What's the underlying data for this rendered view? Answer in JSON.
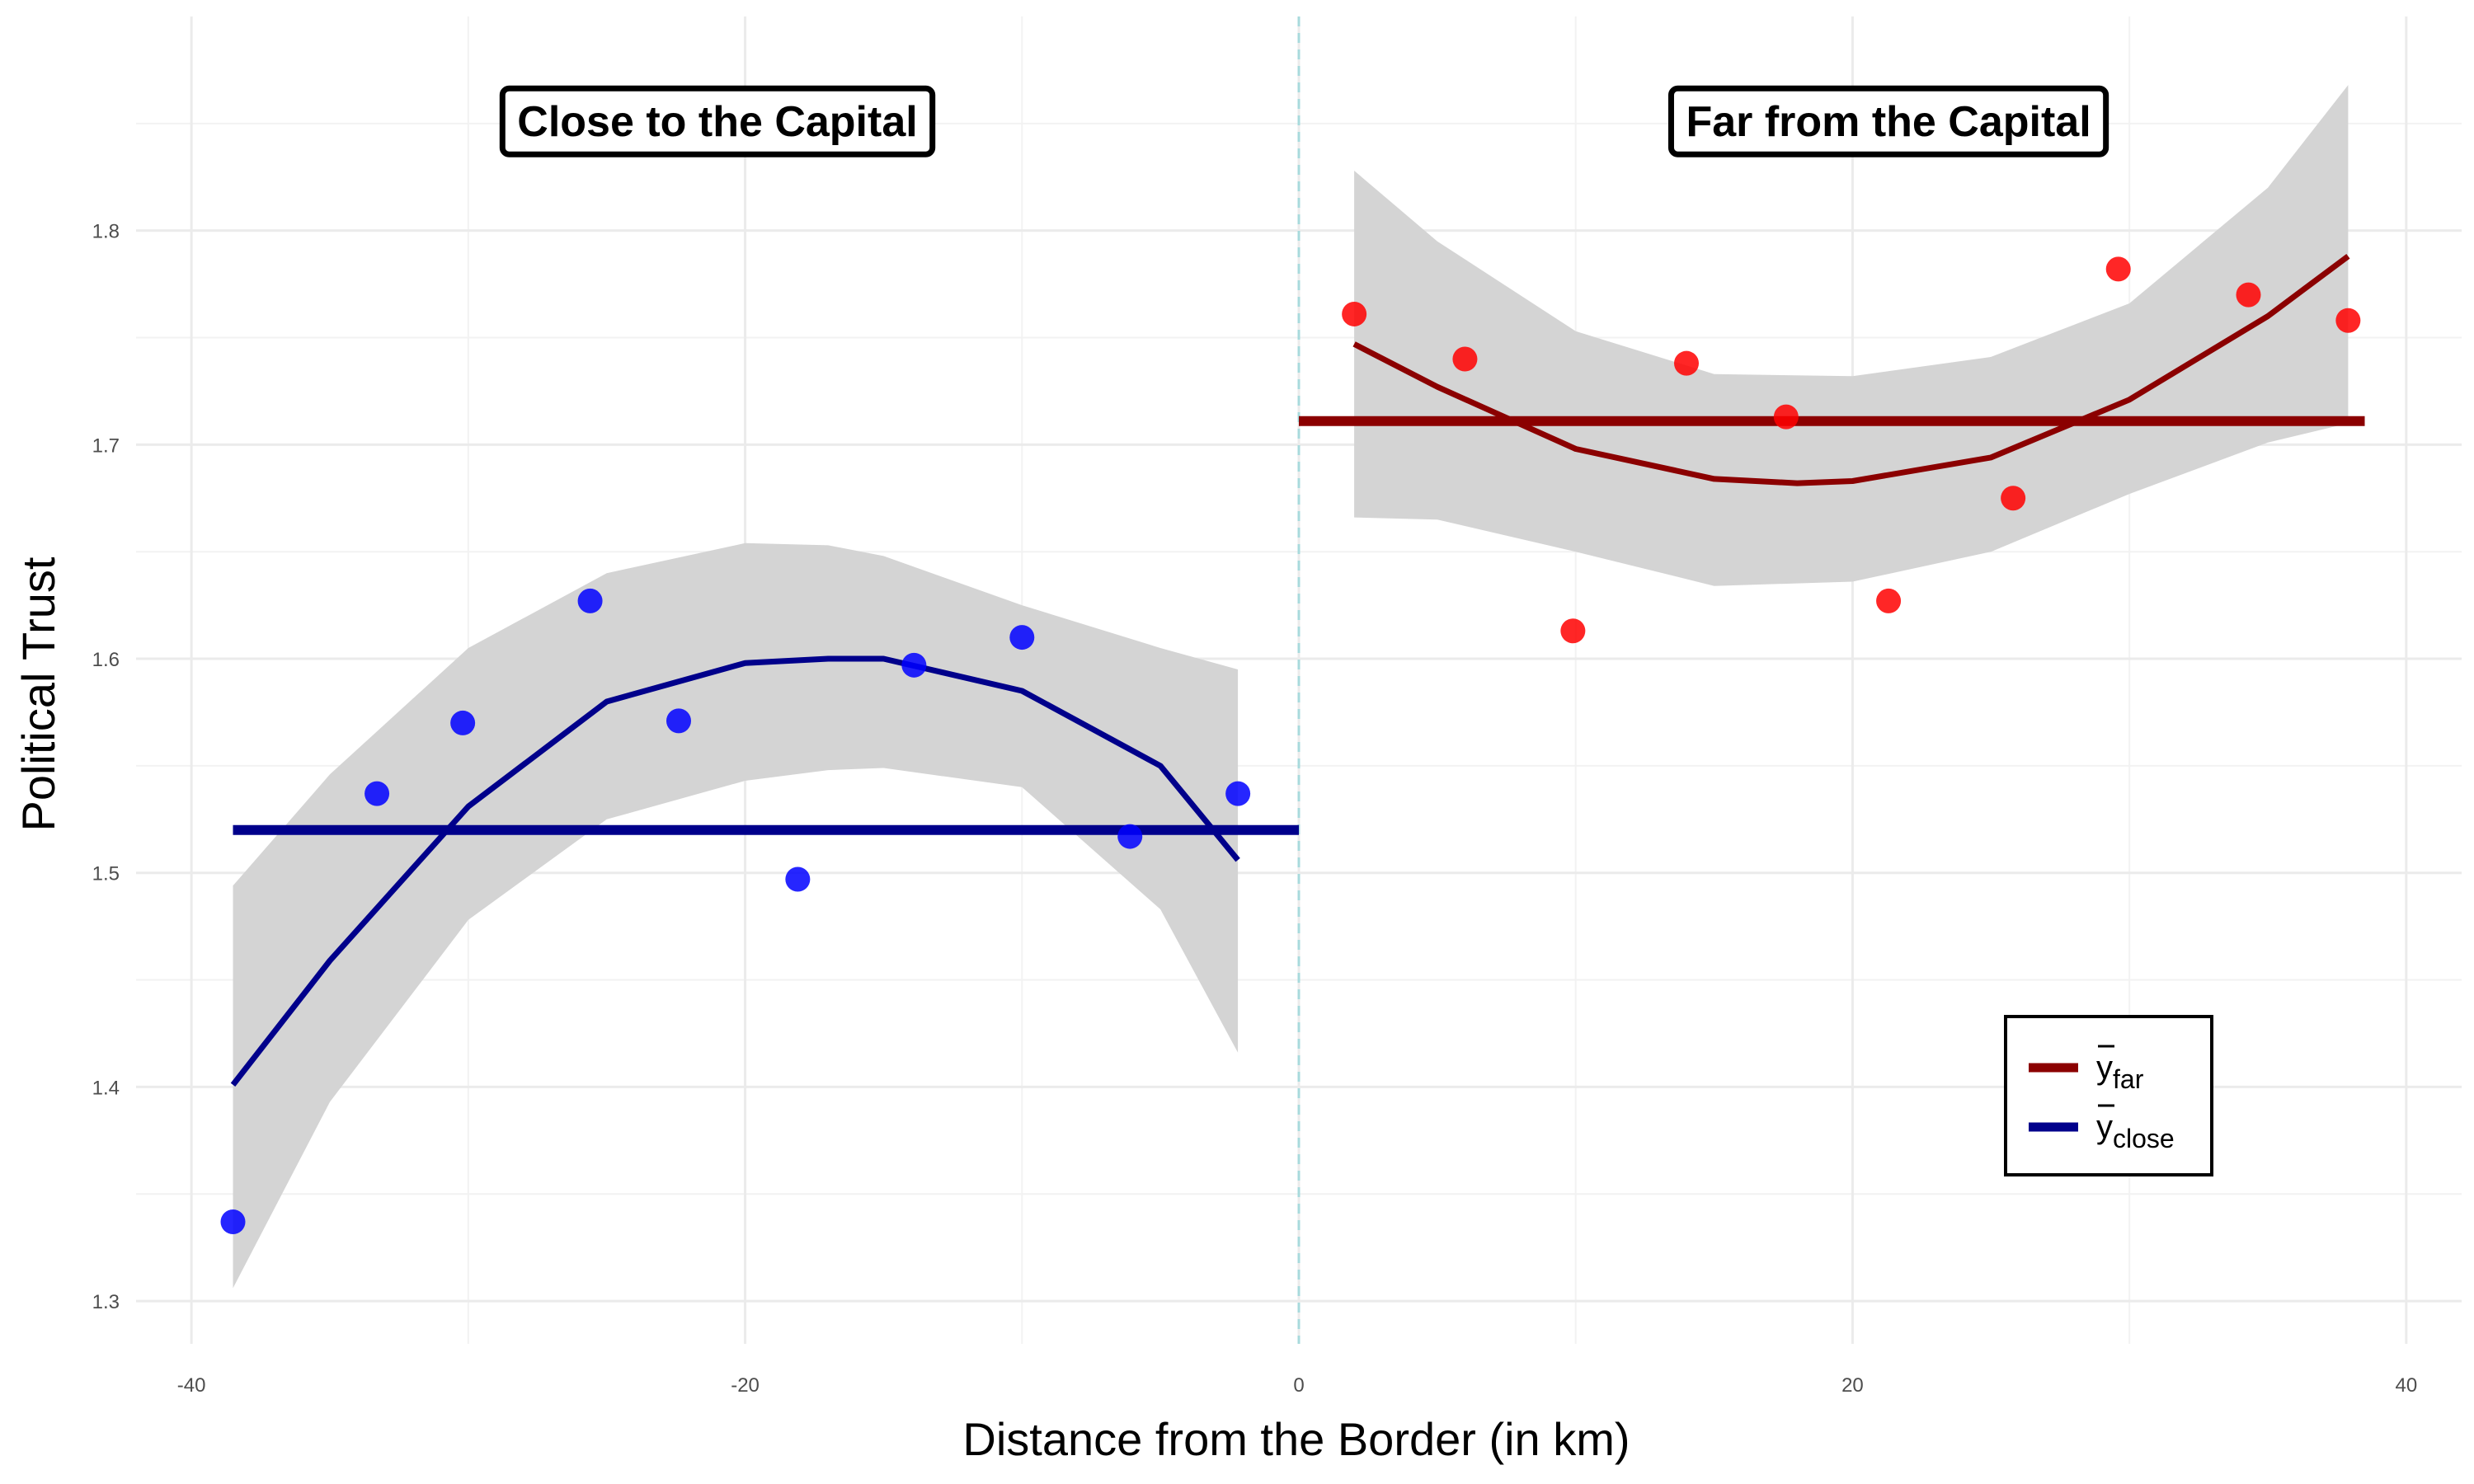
{
  "chart_data": {
    "type": "scatter",
    "xlabel": "Distance from the Border (in km)",
    "ylabel": "Political Trust",
    "xlim": [
      -42,
      42
    ],
    "ylim": [
      1.28,
      1.9
    ],
    "x_ticks": [
      -40,
      -20,
      0,
      20,
      40
    ],
    "x_tick_labels": [
      "-40",
      "-20",
      "0",
      "20",
      "40"
    ],
    "y_ticks": [
      1.3,
      1.4,
      1.5,
      1.6,
      1.7,
      1.8
    ],
    "y_tick_labels": [
      "1.3",
      "1.4",
      "1.5",
      "1.6",
      "1.7",
      "1.8"
    ],
    "grid": true,
    "cutoff_line": {
      "x": 0,
      "style": "dashed",
      "color": "#a8dadc"
    },
    "panel_labels": [
      {
        "text": "Close to the Capital",
        "x": -21,
        "y": 1.851
      },
      {
        "text": "Far from the Capital",
        "x": 21.3,
        "y": 1.851
      }
    ],
    "series": [
      {
        "group": "close",
        "color": "#0000ff",
        "fit_color": "#00008b",
        "points": [
          {
            "x": -38.5,
            "y": 1.337
          },
          {
            "x": -33.3,
            "y": 1.537
          },
          {
            "x": -30.2,
            "y": 1.57
          },
          {
            "x": -25.6,
            "y": 1.627
          },
          {
            "x": -22.4,
            "y": 1.571
          },
          {
            "x": -18.1,
            "y": 1.497
          },
          {
            "x": -13.9,
            "y": 1.597
          },
          {
            "x": -10.0,
            "y": 1.61
          },
          {
            "x": -6.1,
            "y": 1.517
          },
          {
            "x": -2.2,
            "y": 1.537
          }
        ],
        "fit": [
          {
            "x": -38.5,
            "y": 1.401
          },
          {
            "x": -35.0,
            "y": 1.459
          },
          {
            "x": -30.0,
            "y": 1.531
          },
          {
            "x": -25.0,
            "y": 1.58
          },
          {
            "x": -20.0,
            "y": 1.598
          },
          {
            "x": -17.0,
            "y": 1.6
          },
          {
            "x": -15.0,
            "y": 1.6
          },
          {
            "x": -10.0,
            "y": 1.585
          },
          {
            "x": -5.0,
            "y": 1.55
          },
          {
            "x": -2.2,
            "y": 1.506
          }
        ],
        "ci_upper": [
          {
            "x": -38.5,
            "y": 1.494
          },
          {
            "x": -35.0,
            "y": 1.546
          },
          {
            "x": -30.0,
            "y": 1.605
          },
          {
            "x": -25.0,
            "y": 1.64
          },
          {
            "x": -20.0,
            "y": 1.654
          },
          {
            "x": -17.0,
            "y": 1.653
          },
          {
            "x": -15.0,
            "y": 1.648
          },
          {
            "x": -10.0,
            "y": 1.625
          },
          {
            "x": -5.0,
            "y": 1.605
          },
          {
            "x": -2.2,
            "y": 1.595
          }
        ],
        "ci_lower": [
          {
            "x": -38.5,
            "y": 1.306
          },
          {
            "x": -35.0,
            "y": 1.393
          },
          {
            "x": -30.0,
            "y": 1.478
          },
          {
            "x": -25.0,
            "y": 1.525
          },
          {
            "x": -20.0,
            "y": 1.543
          },
          {
            "x": -17.0,
            "y": 1.548
          },
          {
            "x": -15.0,
            "y": 1.549
          },
          {
            "x": -10.0,
            "y": 1.54
          },
          {
            "x": -5.0,
            "y": 1.483
          },
          {
            "x": -2.2,
            "y": 1.416
          }
        ],
        "mean": {
          "y": 1.52,
          "x_start": -38.5,
          "x_end": 0
        }
      },
      {
        "group": "far",
        "color": "#ff0000",
        "fit_color": "#8b0000",
        "points": [
          {
            "x": 2.0,
            "y": 1.761
          },
          {
            "x": 6.0,
            "y": 1.74
          },
          {
            "x": 9.9,
            "y": 1.613
          },
          {
            "x": 14.0,
            "y": 1.738
          },
          {
            "x": 17.6,
            "y": 1.713
          },
          {
            "x": 21.3,
            "y": 1.627
          },
          {
            "x": 25.8,
            "y": 1.675
          },
          {
            "x": 29.6,
            "y": 1.782
          },
          {
            "x": 34.3,
            "y": 1.77
          },
          {
            "x": 37.9,
            "y": 1.758
          }
        ],
        "fit": [
          {
            "x": 2.0,
            "y": 1.747
          },
          {
            "x": 5.0,
            "y": 1.727
          },
          {
            "x": 10.0,
            "y": 1.698
          },
          {
            "x": 15.0,
            "y": 1.684
          },
          {
            "x": 18.0,
            "y": 1.682
          },
          {
            "x": 20.0,
            "y": 1.683
          },
          {
            "x": 25.0,
            "y": 1.694
          },
          {
            "x": 30.0,
            "y": 1.721
          },
          {
            "x": 35.0,
            "y": 1.76
          },
          {
            "x": 37.9,
            "y": 1.788
          }
        ],
        "ci_upper": [
          {
            "x": 2.0,
            "y": 1.828
          },
          {
            "x": 5.0,
            "y": 1.795
          },
          {
            "x": 10.0,
            "y": 1.753
          },
          {
            "x": 15.0,
            "y": 1.733
          },
          {
            "x": 20.0,
            "y": 1.732
          },
          {
            "x": 25.0,
            "y": 1.741
          },
          {
            "x": 30.0,
            "y": 1.766
          },
          {
            "x": 35.0,
            "y": 1.82
          },
          {
            "x": 37.9,
            "y": 1.868
          }
        ],
        "ci_lower": [
          {
            "x": 2.0,
            "y": 1.666
          },
          {
            "x": 5.0,
            "y": 1.665
          },
          {
            "x": 10.0,
            "y": 1.65
          },
          {
            "x": 15.0,
            "y": 1.634
          },
          {
            "x": 20.0,
            "y": 1.636
          },
          {
            "x": 25.0,
            "y": 1.65
          },
          {
            "x": 30.0,
            "y": 1.677
          },
          {
            "x": 35.0,
            "y": 1.701
          },
          {
            "x": 37.9,
            "y": 1.71
          }
        ],
        "mean": {
          "y": 1.711,
          "x_start": 0,
          "x_end": 38.5
        }
      }
    ],
    "legend": {
      "position": "bottom-right",
      "entries": [
        {
          "symbol": "y",
          "subscript": "far",
          "color": "#8b0000"
        },
        {
          "symbol": "y",
          "subscript": "close",
          "color": "#00008b"
        }
      ]
    }
  }
}
